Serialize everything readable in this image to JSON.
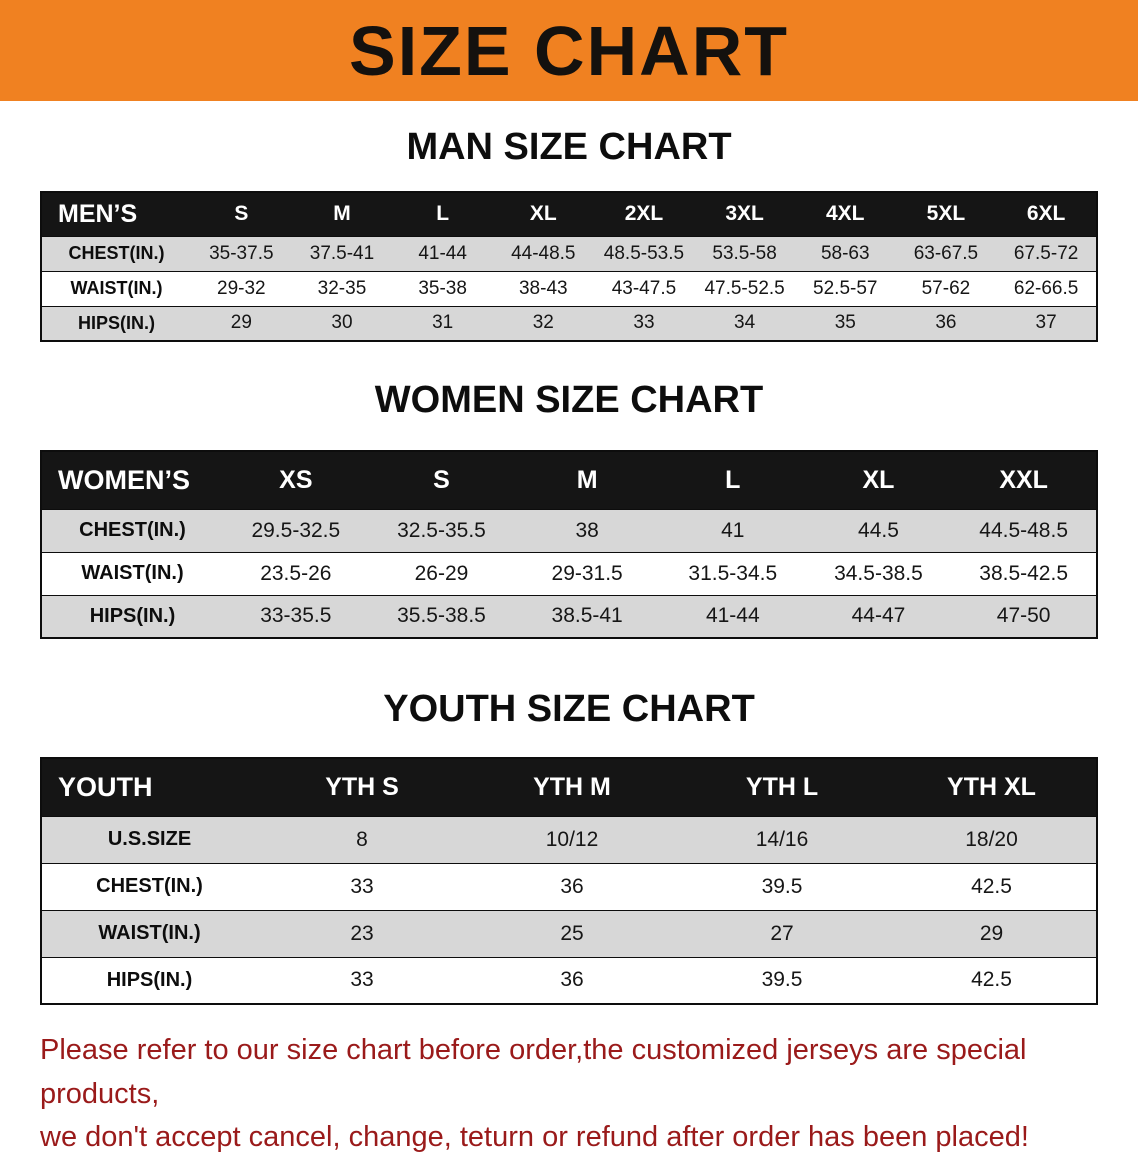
{
  "banner": {
    "title": "SIZE CHART"
  },
  "colors": {
    "banner_bg": "#f08121",
    "table_header_bg": "#151515",
    "row_stripe": "#d7d7d7",
    "footer_text": "#9a1a1a"
  },
  "sections": [
    {
      "heading": "MAN SIZE CHART",
      "table": {
        "header": [
          "MEN’S",
          "S",
          "M",
          "L",
          "XL",
          "2XL",
          "3XL",
          "4XL",
          "5XL",
          "6XL"
        ],
        "rows": [
          [
            "CHEST(IN.)",
            "35-37.5",
            "37.5-41",
            "41-44",
            "44-48.5",
            "48.5-53.5",
            "53.5-58",
            "58-63",
            "63-67.5",
            "67.5-72"
          ],
          [
            "WAIST(IN.)",
            "29-32",
            "32-35",
            "35-38",
            "38-43",
            "43-47.5",
            "47.5-52.5",
            "52.5-57",
            "57-62",
            "62-66.5"
          ],
          [
            "HIPS(IN.)",
            "29",
            "30",
            "31",
            "32",
            "33",
            "34",
            "35",
            "36",
            "37"
          ]
        ]
      }
    },
    {
      "heading": "WOMEN SIZE CHART",
      "table": {
        "header": [
          "WOMEN’S",
          "XS",
          "S",
          "M",
          "L",
          "XL",
          "XXL"
        ],
        "rows": [
          [
            "CHEST(IN.)",
            "29.5-32.5",
            "32.5-35.5",
            "38",
            "41",
            "44.5",
            "44.5-48.5"
          ],
          [
            "WAIST(IN.)",
            "23.5-26",
            "26-29",
            "29-31.5",
            "31.5-34.5",
            "34.5-38.5",
            "38.5-42.5"
          ],
          [
            "HIPS(IN.)",
            "33-35.5",
            "35.5-38.5",
            "38.5-41",
            "41-44",
            "44-47",
            "47-50"
          ]
        ]
      }
    },
    {
      "heading": "YOUTH SIZE CHART",
      "table": {
        "header": [
          "YOUTH",
          "YTH S",
          "YTH M",
          "YTH L",
          "YTH XL"
        ],
        "rows": [
          [
            "U.S.SIZE",
            "8",
            "10/12",
            "14/16",
            "18/20"
          ],
          [
            "CHEST(IN.)",
            "33",
            "36",
            "39.5",
            "42.5"
          ],
          [
            "WAIST(IN.)",
            "23",
            "25",
            "27",
            "29"
          ],
          [
            "HIPS(IN.)",
            "33",
            "36",
            "39.5",
            "42.5"
          ]
        ]
      }
    }
  ],
  "footer": {
    "line1": "Please refer to our size chart before order,the customized jerseys are special products,",
    "line2": "we don't accept cancel, change, teturn or refund after order has been placed!"
  }
}
